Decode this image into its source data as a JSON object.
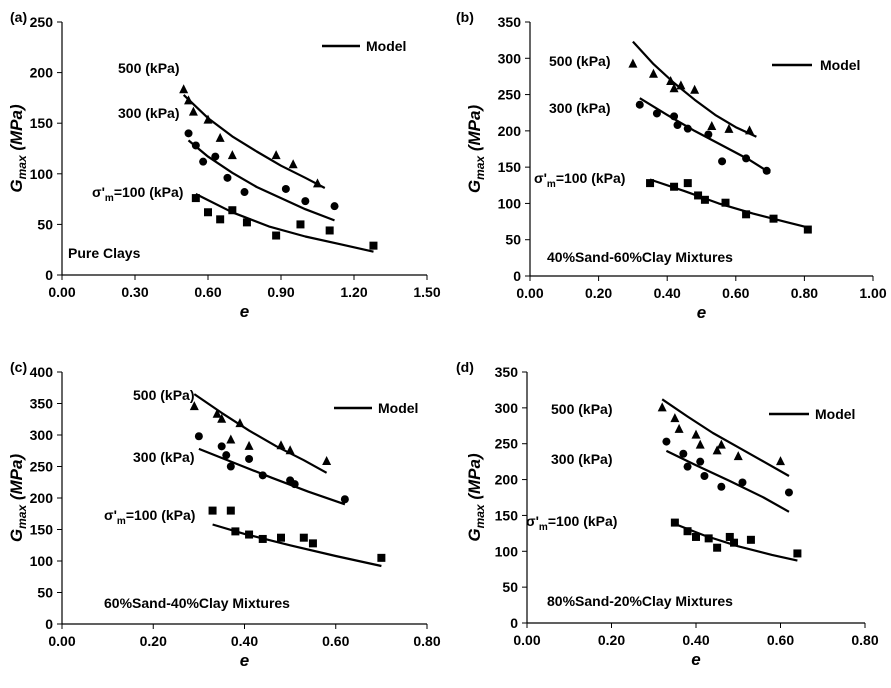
{
  "chart_data": [
    {
      "panel_label": "(a)",
      "type": "scatter",
      "xlabel": "e",
      "ylabel": "G",
      "ylabel_sub": "max",
      "ylabel_unit": "(MPa)",
      "xlim": [
        0.0,
        1.5
      ],
      "ylim": [
        0,
        250
      ],
      "xticks": [
        "0.00",
        "0.30",
        "0.60",
        "0.90",
        "1.20",
        "1.50"
      ],
      "yticks": [
        "0",
        "50",
        "100",
        "150",
        "200",
        "250"
      ],
      "legend": "Model",
      "annotation": "Pure Clays",
      "series": [
        {
          "label": "500 (kPa)",
          "marker": "triangle",
          "points": [
            [
              0.5,
              183
            ],
            [
              0.52,
              172
            ],
            [
              0.54,
              161
            ],
            [
              0.6,
              153
            ],
            [
              0.65,
              135
            ],
            [
              0.7,
              118
            ],
            [
              0.88,
              118
            ],
            [
              0.95,
              109
            ],
            [
              1.05,
              90
            ]
          ],
          "model": [
            [
              0.5,
              178
            ],
            [
              0.6,
              155
            ],
            [
              0.7,
              137
            ],
            [
              0.8,
              122
            ],
            [
              0.9,
              108
            ],
            [
              1.0,
              96
            ],
            [
              1.08,
              86
            ]
          ]
        },
        {
          "label": "300 (kPa)",
          "marker": "circle",
          "points": [
            [
              0.52,
              140
            ],
            [
              0.55,
              128
            ],
            [
              0.58,
              112
            ],
            [
              0.63,
              117
            ],
            [
              0.68,
              96
            ],
            [
              0.75,
              82
            ],
            [
              0.92,
              85
            ],
            [
              1.0,
              73
            ],
            [
              1.12,
              68
            ]
          ],
          "model": [
            [
              0.52,
              133
            ],
            [
              0.6,
              117
            ],
            [
              0.7,
              101
            ],
            [
              0.8,
              87
            ],
            [
              0.9,
              76
            ],
            [
              1.0,
              65
            ],
            [
              1.12,
              54
            ]
          ]
        },
        {
          "label": "σ'm=100 (kPa)",
          "marker": "square",
          "points": [
            [
              0.55,
              76
            ],
            [
              0.6,
              62
            ],
            [
              0.65,
              55
            ],
            [
              0.7,
              64
            ],
            [
              0.76,
              52
            ],
            [
              0.88,
              39
            ],
            [
              0.98,
              50
            ],
            [
              1.1,
              44
            ],
            [
              1.28,
              29
            ]
          ],
          "model": [
            [
              0.55,
              80
            ],
            [
              0.7,
              62
            ],
            [
              0.85,
              48
            ],
            [
              1.0,
              38
            ],
            [
              1.15,
              30
            ],
            [
              1.28,
              23
            ]
          ]
        }
      ]
    },
    {
      "panel_label": "(b)",
      "type": "scatter",
      "xlabel": "e",
      "ylabel": "G",
      "ylabel_sub": "max",
      "ylabel_unit": "(MPa)",
      "xlim": [
        0.0,
        1.0
      ],
      "ylim": [
        0,
        350
      ],
      "xticks": [
        "0.00",
        "0.20",
        "0.40",
        "0.60",
        "0.80",
        "1.00"
      ],
      "yticks": [
        "0",
        "50",
        "100",
        "150",
        "200",
        "250",
        "300",
        "350"
      ],
      "legend": "Model",
      "annotation": "40%Sand-60%Clay Mixtures",
      "series": [
        {
          "label": "500 (kPa)",
          "marker": "triangle",
          "points": [
            [
              0.3,
              292
            ],
            [
              0.36,
              278
            ],
            [
              0.41,
              268
            ],
            [
              0.42,
              258
            ],
            [
              0.44,
              262
            ],
            [
              0.48,
              256
            ],
            [
              0.53,
              206
            ],
            [
              0.58,
              202
            ],
            [
              0.64,
              200
            ]
          ],
          "model": [
            [
              0.3,
              323
            ],
            [
              0.36,
              292
            ],
            [
              0.42,
              266
            ],
            [
              0.48,
              243
            ],
            [
              0.54,
              222
            ],
            [
              0.6,
              205
            ],
            [
              0.66,
              192
            ]
          ]
        },
        {
          "label": "300 (kPa)",
          "marker": "circle",
          "points": [
            [
              0.32,
              236
            ],
            [
              0.37,
              224
            ],
            [
              0.42,
              220
            ],
            [
              0.43,
              208
            ],
            [
              0.46,
              203
            ],
            [
              0.52,
              195
            ],
            [
              0.56,
              158
            ],
            [
              0.63,
              162
            ],
            [
              0.69,
              145
            ]
          ],
          "model": [
            [
              0.32,
              245
            ],
            [
              0.4,
              222
            ],
            [
              0.48,
              200
            ],
            [
              0.56,
              180
            ],
            [
              0.64,
              160
            ],
            [
              0.7,
              142
            ]
          ]
        },
        {
          "label": "σ'm=100 (kPa)",
          "marker": "square",
          "points": [
            [
              0.35,
              128
            ],
            [
              0.42,
              123
            ],
            [
              0.46,
              128
            ],
            [
              0.49,
              111
            ],
            [
              0.51,
              105
            ],
            [
              0.57,
              101
            ],
            [
              0.63,
              85
            ],
            [
              0.71,
              79
            ],
            [
              0.81,
              64
            ]
          ],
          "model": [
            [
              0.35,
              133
            ],
            [
              0.45,
              117
            ],
            [
              0.55,
              100
            ],
            [
              0.65,
              86
            ],
            [
              0.75,
              74
            ],
            [
              0.81,
              67
            ]
          ]
        }
      ]
    },
    {
      "panel_label": "(c)",
      "type": "scatter",
      "xlabel": "e",
      "ylabel": "G",
      "ylabel_sub": "max",
      "ylabel_unit": "(MPa)",
      "xlim": [
        0.0,
        0.8
      ],
      "ylim": [
        0,
        400
      ],
      "xticks": [
        "0.00",
        "0.20",
        "0.40",
        "0.60",
        "0.80"
      ],
      "yticks": [
        "0",
        "50",
        "100",
        "150",
        "200",
        "250",
        "300",
        "350",
        "400"
      ],
      "legend": "Model",
      "annotation": "60%Sand-40%Clay Mixtures",
      "series": [
        {
          "label": "500 (kPa)",
          "marker": "triangle",
          "points": [
            [
              0.29,
              345
            ],
            [
              0.34,
              333
            ],
            [
              0.35,
              325
            ],
            [
              0.37,
              292
            ],
            [
              0.39,
              318
            ],
            [
              0.41,
              282
            ],
            [
              0.48,
              283
            ],
            [
              0.5,
              275
            ],
            [
              0.58,
              258
            ]
          ],
          "model": [
            [
              0.29,
              365
            ],
            [
              0.35,
              335
            ],
            [
              0.41,
              307
            ],
            [
              0.47,
              282
            ],
            [
              0.53,
              260
            ],
            [
              0.58,
              240
            ]
          ]
        },
        {
          "label": "300 (kPa)",
          "marker": "circle",
          "points": [
            [
              0.3,
              298
            ],
            [
              0.35,
              282
            ],
            [
              0.36,
              268
            ],
            [
              0.37,
              250
            ],
            [
              0.41,
              262
            ],
            [
              0.44,
              236
            ],
            [
              0.5,
              228
            ],
            [
              0.51,
              222
            ],
            [
              0.62,
              198
            ]
          ],
          "model": [
            [
              0.3,
              278
            ],
            [
              0.38,
              255
            ],
            [
              0.46,
              232
            ],
            [
              0.54,
              210
            ],
            [
              0.62,
              190
            ]
          ]
        },
        {
          "label": "σ'm=100 (kPa)",
          "marker": "square",
          "points": [
            [
              0.33,
              180
            ],
            [
              0.37,
              180
            ],
            [
              0.38,
              147
            ],
            [
              0.41,
              142
            ],
            [
              0.44,
              135
            ],
            [
              0.48,
              137
            ],
            [
              0.53,
              137
            ],
            [
              0.55,
              128
            ],
            [
              0.7,
              105
            ]
          ],
          "model": [
            [
              0.33,
              158
            ],
            [
              0.4,
              143
            ],
            [
              0.5,
              125
            ],
            [
              0.6,
              108
            ],
            [
              0.7,
              92
            ]
          ]
        }
      ]
    },
    {
      "panel_label": "(d)",
      "type": "scatter",
      "xlabel": "e",
      "ylabel": "G",
      "ylabel_sub": "max",
      "ylabel_unit": "(MPa)",
      "xlim": [
        0.0,
        0.8
      ],
      "ylim": [
        0,
        350
      ],
      "xticks": [
        "0.00",
        "0.20",
        "0.40",
        "0.60",
        "0.80"
      ],
      "yticks": [
        "0",
        "50",
        "100",
        "150",
        "200",
        "250",
        "300",
        "350"
      ],
      "legend": "Model",
      "annotation": "80%Sand-20%Clay Mixtures",
      "series": [
        {
          "label": "500 (kPa)",
          "marker": "triangle",
          "points": [
            [
              0.32,
              300
            ],
            [
              0.35,
              285
            ],
            [
              0.36,
              270
            ],
            [
              0.4,
              262
            ],
            [
              0.41,
              248
            ],
            [
              0.45,
              240
            ],
            [
              0.46,
              248
            ],
            [
              0.5,
              232
            ],
            [
              0.6,
              225
            ]
          ],
          "model": [
            [
              0.32,
              312
            ],
            [
              0.38,
              288
            ],
            [
              0.44,
              265
            ],
            [
              0.5,
              245
            ],
            [
              0.56,
              225
            ],
            [
              0.62,
              205
            ]
          ]
        },
        {
          "label": "300 (kPa)",
          "marker": "circle",
          "points": [
            [
              0.33,
              253
            ],
            [
              0.37,
              236
            ],
            [
              0.38,
              218
            ],
            [
              0.41,
              225
            ],
            [
              0.42,
              205
            ],
            [
              0.46,
              190
            ],
            [
              0.51,
              196
            ],
            [
              0.62,
              182
            ]
          ],
          "model": [
            [
              0.33,
              240
            ],
            [
              0.4,
              220
            ],
            [
              0.48,
              198
            ],
            [
              0.56,
              175
            ],
            [
              0.62,
              155
            ]
          ]
        },
        {
          "label": "σ'm=100 (kPa)",
          "marker": "square",
          "points": [
            [
              0.35,
              140
            ],
            [
              0.38,
              128
            ],
            [
              0.4,
              120
            ],
            [
              0.43,
              118
            ],
            [
              0.45,
              105
            ],
            [
              0.48,
              120
            ],
            [
              0.49,
              112
            ],
            [
              0.53,
              116
            ],
            [
              0.64,
              97
            ]
          ],
          "model": [
            [
              0.35,
              138
            ],
            [
              0.42,
              122
            ],
            [
              0.5,
              107
            ],
            [
              0.58,
              95
            ],
            [
              0.64,
              87
            ]
          ]
        }
      ]
    }
  ]
}
